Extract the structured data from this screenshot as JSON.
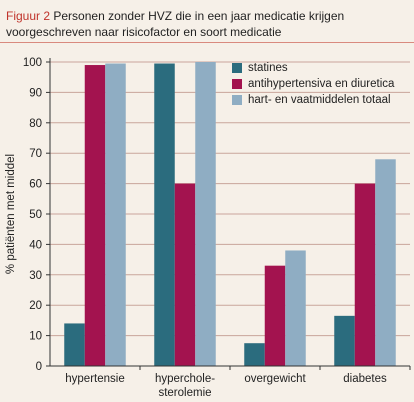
{
  "figure": {
    "label": "Figuur 2",
    "title": "Personen zonder HVZ die in een jaar medicatie krijgen voorgeschreven naar risicofactor en soort medicatie"
  },
  "colors": {
    "background": "#f6f0e8",
    "gridline": "#c9a59b",
    "axis": "#333333",
    "accent": "#c0332b"
  },
  "chart_data": {
    "type": "bar",
    "categories": [
      "hypertensie",
      "hypercholesterolemie",
      "overgewicht",
      "diabetes"
    ],
    "category_label_lines": [
      [
        "hypertensie"
      ],
      [
        "hyperchole-",
        "sterolemie"
      ],
      [
        "overgewicht"
      ],
      [
        "diabetes"
      ]
    ],
    "series": [
      {
        "name": "statines",
        "color": "#2b6c7e",
        "values": [
          14,
          99.5,
          7.5,
          16.5
        ]
      },
      {
        "name": "antihypertensiva en diuretica",
        "color": "#a3134f",
        "values": [
          99,
          60,
          33,
          60
        ]
      },
      {
        "name": "hart- en vaatmiddelen totaal",
        "color": "#8fadc3",
        "values": [
          99.5,
          100,
          38,
          68
        ]
      }
    ],
    "ylabel": "% patiënten met middel",
    "xlabel": "",
    "ylim": [
      0,
      100
    ],
    "yticks": [
      0,
      10,
      20,
      30,
      40,
      50,
      60,
      70,
      80,
      90,
      100
    ],
    "grid": true,
    "legend_position": "top-right"
  }
}
